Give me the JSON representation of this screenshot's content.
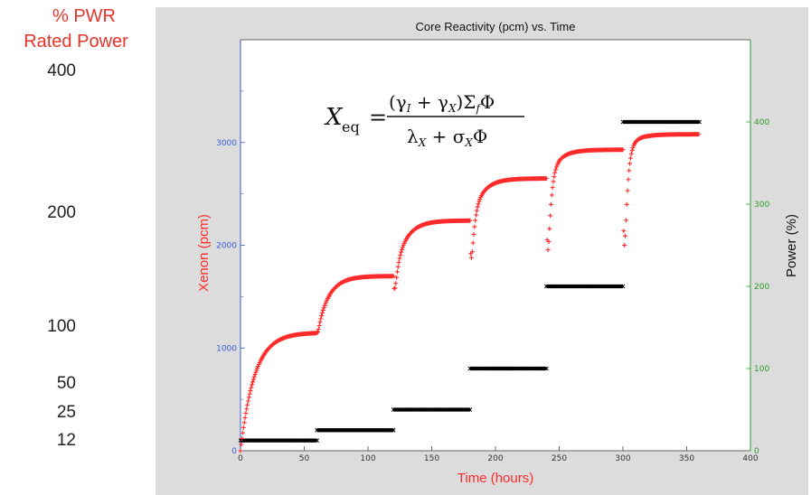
{
  "side_labels": {
    "title_line1": "% PWR",
    "title_line2": "Rated Power",
    "levels": [
      "400",
      "200",
      "100",
      "50",
      "25",
      "12"
    ]
  },
  "equation": {
    "lhs": "X",
    "lhs_sub": "eq",
    "equals": "=",
    "numerator": "(γ ",
    "numerator_full": "(γI + γX)ΣfΦ",
    "denominator_full": "λX + σXΦ"
  },
  "chart_data": {
    "type": "scatter",
    "title": "Core Reactivity (pcm) vs. Time",
    "xlabel": "Time (hours)",
    "ylabel": "Xenon (pcm)",
    "ylabel_right": "Power (%)",
    "xlim": [
      0,
      400
    ],
    "ylim": [
      0,
      4000
    ],
    "ylim_right": [
      0,
      500
    ],
    "x_ticks": [
      "0",
      "50",
      "100",
      "150",
      "200",
      "250",
      "300",
      "350",
      "400"
    ],
    "y_ticks": [
      "0",
      "1000",
      "2000",
      "3000"
    ],
    "y_ticks_right": [
      "0",
      "100",
      "200",
      "300",
      "400"
    ],
    "grid": false,
    "colors": {
      "xenon": "#ff2a2a",
      "power": "#000000",
      "left_axis": "#3b5bd6",
      "right_axis": "#2e9a2e",
      "title_side": "#e8342a"
    },
    "series": [
      {
        "name": "Xenon (pcm)",
        "axis": "left",
        "marker": "+",
        "segments": [
          {
            "x_start": 0,
            "x_end": 60,
            "start": 0,
            "equilibrium": 1150
          },
          {
            "x_start": 60,
            "x_end": 120,
            "start": 1150,
            "equilibrium": 1700,
            "dip": 40
          },
          {
            "x_start": 120,
            "x_end": 180,
            "start": 1700,
            "equilibrium": 2240,
            "dip": 210
          },
          {
            "x_start": 180,
            "x_end": 240,
            "start": 2240,
            "equilibrium": 2650,
            "dip": 470
          },
          {
            "x_start": 240,
            "x_end": 300,
            "start": 2650,
            "equilibrium": 2930,
            "dip": 830
          },
          {
            "x_start": 300,
            "x_end": 360,
            "start": 2930,
            "equilibrium": 3080,
            "dip": 1080
          }
        ]
      },
      {
        "name": "Power (%)",
        "axis": "right",
        "marker": "x",
        "steps": [
          {
            "x_start": 0,
            "x_end": 60,
            "value": 12.5
          },
          {
            "x_start": 60,
            "x_end": 120,
            "value": 25
          },
          {
            "x_start": 120,
            "x_end": 180,
            "value": 50
          },
          {
            "x_start": 180,
            "x_end": 240,
            "value": 100
          },
          {
            "x_start": 240,
            "x_end": 300,
            "value": 200
          },
          {
            "x_start": 300,
            "x_end": 360,
            "value": 400
          }
        ]
      }
    ]
  }
}
